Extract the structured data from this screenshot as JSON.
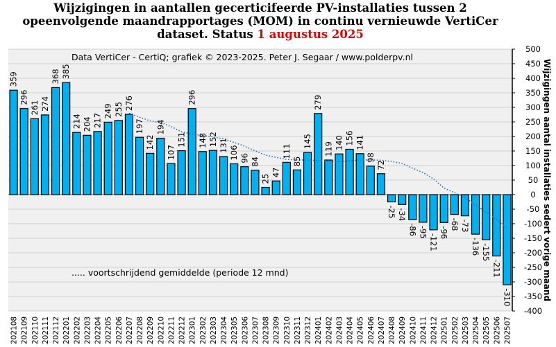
{
  "chart_data": {
    "type": "bar",
    "title_line1": "Wijzigingen  in aantallen gecerticifeerde PV-installaties  tussen 2",
    "title_line2": "opeenvolgende maandrapportages (MOM) in continu vernieuwde VertiCer",
    "title_line3": "dataset. Status",
    "title_date": "1 augustus 2025",
    "subtitle": "Data VertiCer  - CertiQ;  grafiek © 2023-2025.  Peter J. Segaar / www.polderpv.nl",
    "ylabel": "Wijzigingen aantal installaties sedert vorige maand",
    "ylim": [
      -400,
      500
    ],
    "ytick_step": 50,
    "grid": true,
    "legend_text": "..... voortschrijdend gemiddelde  (periode 12 mnd)",
    "legend_placement": "bottom-left",
    "moving_average_period": 12,
    "colors": {
      "bar": "#00b0f0",
      "average": "#1f6fc0",
      "title_date": "#e00000",
      "plot_bg": "#f0f0f0",
      "grid": "#d0d0d0"
    },
    "categories": [
      "202108",
      "202109",
      "202110",
      "202111",
      "202112",
      "202201",
      "202202",
      "202203",
      "202204",
      "202205",
      "202206",
      "202207",
      "202208",
      "202209",
      "202210",
      "202211",
      "202212",
      "202301",
      "202302",
      "202303",
      "202304",
      "202305",
      "202306",
      "202307",
      "202308",
      "202309",
      "202310",
      "202311",
      "202312",
      "202401",
      "202402",
      "202403",
      "202404",
      "202405",
      "202406",
      "202407",
      "202408",
      "202409",
      "202410",
      "202411",
      "202412",
      "202501",
      "202502",
      "202503",
      "202504",
      "202505",
      "202506",
      "202507"
    ],
    "values": [
      359,
      296,
      261,
      274,
      368,
      385,
      214,
      204,
      217,
      249,
      255,
      276,
      197,
      142,
      194,
      107,
      151,
      296,
      148,
      152,
      131,
      106,
      96,
      84,
      25,
      47,
      111,
      85,
      145,
      279,
      119,
      140,
      156,
      141,
      98,
      72,
      -25,
      -34,
      -86,
      -95,
      -121,
      -96,
      -68,
      -73,
      -136,
      -155,
      -211,
      -310
    ]
  }
}
